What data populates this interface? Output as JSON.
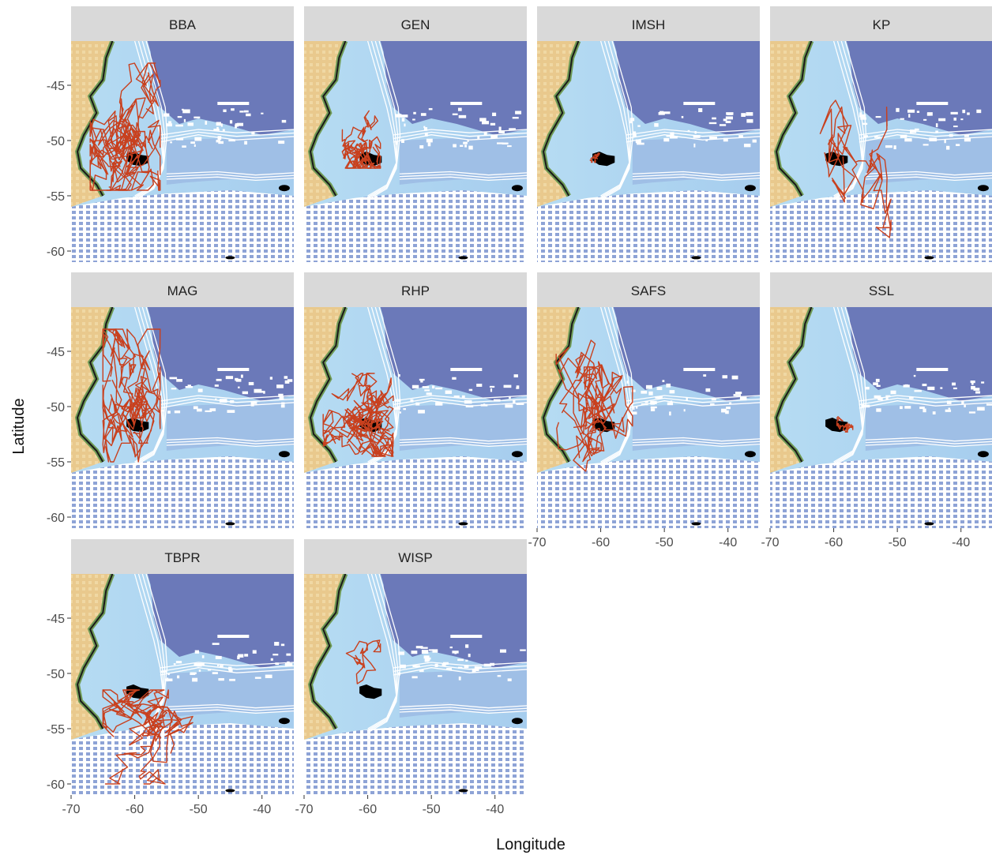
{
  "figure": {
    "xlabel": "Longitude",
    "ylabel": "Latitude",
    "x_ticks": [
      -70,
      -60,
      -50,
      -40
    ],
    "y_ticks": [
      -45,
      -50,
      -55,
      -60
    ],
    "xlim": [
      -70,
      -35
    ],
    "ylim": [
      -61,
      -41
    ]
  },
  "colors": {
    "strip": "#d9d9d9",
    "deep_ocean": "#6b79b9",
    "mid_ocean": "#97aad8",
    "shelf_ocean": "#aad3f1",
    "land": "#e9c98d",
    "land_green": "#6f9a55",
    "track": "#c8401e",
    "islands": "#000000",
    "contour": "#ffffff"
  },
  "panels": [
    {
      "label": "BBA",
      "region": [
        [
          -67,
          -54.5
        ],
        [
          -63,
          -43
        ],
        [
          -60,
          -43
        ],
        [
          -56,
          -50
        ],
        [
          -57,
          -53
        ],
        [
          -60,
          -54.5
        ]
      ],
      "density": 60,
      "center": [
        -61,
        -50
      ]
    },
    {
      "label": "GEN",
      "region": [
        [
          -64,
          -50
        ],
        [
          -62,
          -47
        ],
        [
          -59,
          -47.5
        ],
        [
          -58,
          -50
        ],
        [
          -59,
          -52
        ],
        [
          -62,
          -52.5
        ]
      ],
      "density": 30,
      "center": [
        -60.5,
        -50.5
      ]
    },
    {
      "label": "IMSH",
      "region": [
        [
          -62,
          -51.5
        ],
        [
          -61,
          -51
        ],
        [
          -60,
          -51.5
        ],
        [
          -61,
          -52
        ]
      ],
      "density": 6,
      "center": [
        -61,
        -51.5
      ]
    },
    {
      "label": "KP",
      "region": [
        [
          -62,
          -47
        ],
        [
          -58,
          -44
        ],
        [
          -56,
          -50
        ],
        [
          -53,
          -57
        ],
        [
          -51,
          -59
        ],
        [
          -55,
          -57
        ],
        [
          -57,
          -53
        ],
        [
          -63,
          -52
        ]
      ],
      "density": 14,
      "center": [
        -58,
        -51
      ]
    },
    {
      "label": "MAG",
      "region": [
        [
          -65,
          -48
        ],
        [
          -63,
          -44
        ],
        [
          -59,
          -43
        ],
        [
          -56,
          -48
        ],
        [
          -57,
          -52
        ],
        [
          -59,
          -55
        ],
        [
          -62,
          -53
        ]
      ],
      "density": 50,
      "center": [
        -60,
        -50
      ]
    },
    {
      "label": "RHP",
      "region": [
        [
          -67,
          -52
        ],
        [
          -63,
          -50
        ],
        [
          -59,
          -47
        ],
        [
          -56,
          -48
        ],
        [
          -57,
          -53
        ],
        [
          -61,
          -54.5
        ],
        [
          -66,
          -53.5
        ]
      ],
      "density": 55,
      "center": [
        -61,
        -51
      ]
    },
    {
      "label": "SAFS",
      "region": [
        [
          -67,
          -53
        ],
        [
          -65,
          -46
        ],
        [
          -62,
          -44
        ],
        [
          -58,
          -47
        ],
        [
          -55,
          -51
        ],
        [
          -58,
          -54
        ],
        [
          -64,
          -56
        ]
      ],
      "density": 40,
      "center": [
        -60,
        -50
      ]
    },
    {
      "label": "SSL",
      "region": [
        [
          -59.5,
          -51
        ],
        [
          -58,
          -50.3
        ],
        [
          -57,
          -51.2
        ],
        [
          -58,
          -52.3
        ]
      ],
      "density": 10,
      "center": [
        -58.2,
        -51.3
      ]
    },
    {
      "label": "TBPR",
      "region": [
        [
          -65,
          -53
        ],
        [
          -60,
          -51.5
        ],
        [
          -53,
          -53
        ],
        [
          -49,
          -55.5
        ],
        [
          -52,
          -58
        ],
        [
          -55,
          -60
        ],
        [
          -58,
          -58
        ],
        [
          -61,
          -54
        ]
      ],
      "density": 40,
      "center": [
        -57,
        -55
      ]
    },
    {
      "label": "WISP",
      "region": [
        [
          -66,
          -50
        ],
        [
          -63,
          -47
        ],
        [
          -61,
          -48
        ],
        [
          -58,
          -51
        ],
        [
          -60,
          -52
        ],
        [
          -64,
          -51
        ]
      ],
      "density": 8,
      "center": [
        -61,
        -50
      ]
    }
  ]
}
